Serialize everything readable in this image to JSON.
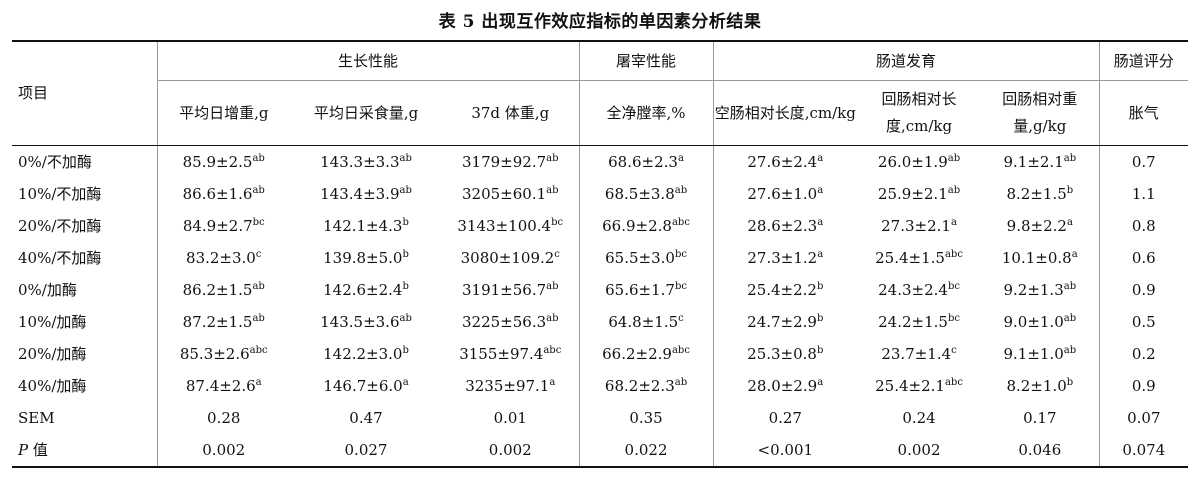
{
  "title": "表 5   出现互作效应指标的单因素分析结果",
  "header": {
    "item_label": "项目",
    "groups": [
      {
        "label": "生长性能",
        "span": 3
      },
      {
        "label": "屠宰性能",
        "span": 1
      },
      {
        "label": "肠道发育",
        "span": 3
      },
      {
        "label": "肠道评分",
        "span": 1
      }
    ],
    "columns": [
      "平均日增重,g",
      "平均日采食量,g",
      "37d 体重,g",
      "全净膛率,%",
      "空肠相对长度,cm/kg",
      "回肠相对长度,cm/kg",
      "回肠相对重量,g/kg",
      "胀气"
    ]
  },
  "rows": [
    {
      "label": "0%/不加酶",
      "cells": [
        [
          "85.9±2.5",
          "ab"
        ],
        [
          "143.3±3.3",
          "ab"
        ],
        [
          "3179±92.7",
          "ab"
        ],
        [
          "68.6±2.3",
          "a"
        ],
        [
          "27.6±2.4",
          "a"
        ],
        [
          "26.0±1.9",
          "ab"
        ],
        [
          "9.1±2.1",
          "ab"
        ],
        [
          "0.7",
          ""
        ]
      ]
    },
    {
      "label": "10%/不加酶",
      "cells": [
        [
          "86.6±1.6",
          "ab"
        ],
        [
          "143.4±3.9",
          "ab"
        ],
        [
          "3205±60.1",
          "ab"
        ],
        [
          "68.5±3.8",
          "ab"
        ],
        [
          "27.6±1.0",
          "a"
        ],
        [
          "25.9±2.1",
          "ab"
        ],
        [
          "8.2±1.5",
          "b"
        ],
        [
          "1.1",
          ""
        ]
      ]
    },
    {
      "label": "20%/不加酶",
      "cells": [
        [
          "84.9±2.7",
          "bc"
        ],
        [
          "142.1±4.3",
          "b"
        ],
        [
          "3143±100.4",
          "bc"
        ],
        [
          "66.9±2.8",
          "abc"
        ],
        [
          "28.6±2.3",
          "a"
        ],
        [
          "27.3±2.1",
          "a"
        ],
        [
          "9.8±2.2",
          "a"
        ],
        [
          "0.8",
          ""
        ]
      ]
    },
    {
      "label": "40%/不加酶",
      "cells": [
        [
          "83.2±3.0",
          "c"
        ],
        [
          "139.8±5.0",
          "b"
        ],
        [
          "3080±109.2",
          "c"
        ],
        [
          "65.5±3.0",
          "bc"
        ],
        [
          "27.3±1.2",
          "a"
        ],
        [
          "25.4±1.5",
          "abc"
        ],
        [
          "10.1±0.8",
          "a"
        ],
        [
          "0.6",
          ""
        ]
      ]
    },
    {
      "label": "0%/加酶",
      "cells": [
        [
          "86.2±1.5",
          "ab"
        ],
        [
          "142.6±2.4",
          "b"
        ],
        [
          "3191±56.7",
          "ab"
        ],
        [
          "65.6±1.7",
          "bc"
        ],
        [
          "25.4±2.2",
          "b"
        ],
        [
          "24.3±2.4",
          "bc"
        ],
        [
          "9.2±1.3",
          "ab"
        ],
        [
          "0.9",
          ""
        ]
      ]
    },
    {
      "label": "10%/加酶",
      "cells": [
        [
          "87.2±1.5",
          "ab"
        ],
        [
          "143.5±3.6",
          "ab"
        ],
        [
          "3225±56.3",
          "ab"
        ],
        [
          "64.8±1.5",
          "c"
        ],
        [
          "24.7±2.9",
          "b"
        ],
        [
          "24.2±1.5",
          "bc"
        ],
        [
          "9.0±1.0",
          "ab"
        ],
        [
          "0.5",
          ""
        ]
      ]
    },
    {
      "label": "20%/加酶",
      "cells": [
        [
          "85.3±2.6",
          "abc"
        ],
        [
          "142.2±3.0",
          "b"
        ],
        [
          "3155±97.4",
          "abc"
        ],
        [
          "66.2±2.9",
          "abc"
        ],
        [
          "25.3±0.8",
          "b"
        ],
        [
          "23.7±1.4",
          "c"
        ],
        [
          "9.1±1.0",
          "ab"
        ],
        [
          "0.2",
          ""
        ]
      ]
    },
    {
      "label": "40%/加酶",
      "cells": [
        [
          "87.4±2.6",
          "a"
        ],
        [
          "146.7±6.0",
          "a"
        ],
        [
          "3235±97.1",
          "a"
        ],
        [
          "68.2±2.3",
          "ab"
        ],
        [
          "28.0±2.9",
          "a"
        ],
        [
          "25.4±2.1",
          "abc"
        ],
        [
          "8.2±1.0",
          "b"
        ],
        [
          "0.9",
          ""
        ]
      ]
    },
    {
      "label": "SEM",
      "cells": [
        [
          "0.28",
          ""
        ],
        [
          "0.47",
          ""
        ],
        [
          "0.01",
          ""
        ],
        [
          "0.35",
          ""
        ],
        [
          "0.27",
          ""
        ],
        [
          "0.24",
          ""
        ],
        [
          "0.17",
          ""
        ],
        [
          "0.07",
          ""
        ]
      ]
    },
    {
      "label_italic": "P",
      "label_rest": " 值",
      "cells": [
        [
          "0.002",
          ""
        ],
        [
          "0.027",
          ""
        ],
        [
          "0.002",
          ""
        ],
        [
          "0.022",
          ""
        ],
        [
          "<0.001",
          ""
        ],
        [
          "0.002",
          ""
        ],
        [
          "0.046",
          ""
        ],
        [
          "0.074",
          ""
        ]
      ]
    }
  ]
}
